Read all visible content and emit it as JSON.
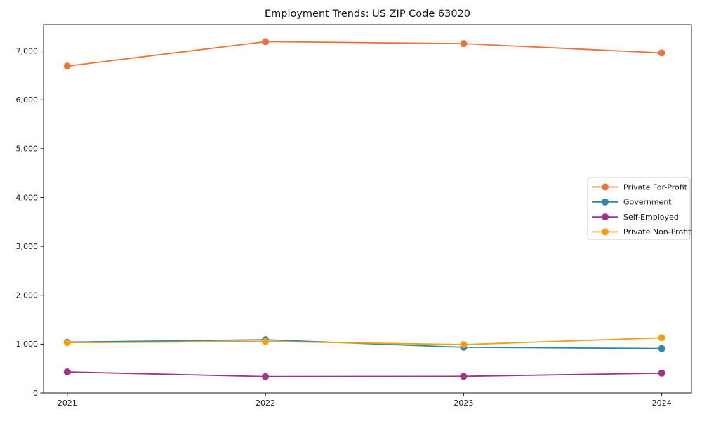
{
  "chart_data": {
    "type": "line",
    "title": "Employment Trends: US ZIP Code 63020",
    "xlabel": "",
    "ylabel": "",
    "x": [
      2021,
      2022,
      2023,
      2024
    ],
    "x_tick_labels": [
      "2021",
      "2022",
      "2023",
      "2024"
    ],
    "xlim": [
      2020.88,
      2024.15
    ],
    "ylim": [
      0,
      7540
    ],
    "yticks": [
      0,
      1000,
      2000,
      3000,
      4000,
      5000,
      6000,
      7000
    ],
    "grid": false,
    "legend_position": "center right",
    "series": [
      {
        "name": "Private For-Profit",
        "color": "#e8743b",
        "values": [
          6690,
          7190,
          7150,
          6960
        ]
      },
      {
        "name": "Government",
        "color": "#2d87a9",
        "values": [
          1040,
          1090,
          935,
          910
        ]
      },
      {
        "name": "Self-Employed",
        "color": "#a13388",
        "values": [
          430,
          335,
          340,
          405
        ]
      },
      {
        "name": "Private Non-Profit",
        "color": "#f0a010",
        "values": [
          1030,
          1055,
          990,
          1130
        ]
      }
    ],
    "axis_color": "#1a1a1a"
  }
}
